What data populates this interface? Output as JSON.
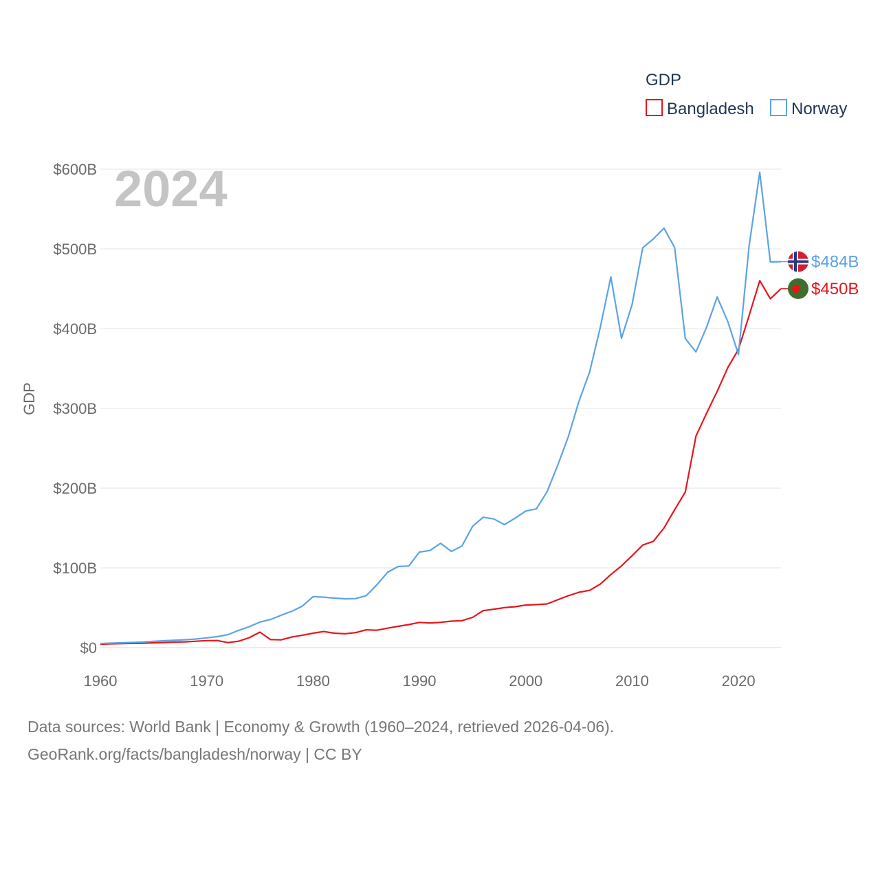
{
  "chart_data": {
    "type": "line",
    "title": "",
    "year_label": "2024",
    "xlabel": "",
    "ylabel": "GDP",
    "xlim": [
      1960,
      2024
    ],
    "ylim": [
      0,
      600
    ],
    "x_ticks": [
      1960,
      1970,
      1980,
      1990,
      2000,
      2010,
      2020
    ],
    "y_ticks": [
      0,
      100,
      200,
      300,
      400,
      500,
      600
    ],
    "y_tick_labels": [
      "$0",
      "$100B",
      "$200B",
      "$300B",
      "$400B",
      "$500B",
      "$600B"
    ],
    "grid": true,
    "legend": {
      "title": "GDP",
      "position": "top-right"
    },
    "x": [
      1960,
      1961,
      1962,
      1963,
      1964,
      1965,
      1966,
      1967,
      1968,
      1969,
      1970,
      1971,
      1972,
      1973,
      1974,
      1975,
      1976,
      1977,
      1978,
      1979,
      1980,
      1981,
      1982,
      1983,
      1984,
      1985,
      1986,
      1987,
      1988,
      1989,
      1990,
      1991,
      1992,
      1993,
      1994,
      1995,
      1996,
      1997,
      1998,
      1999,
      2000,
      2001,
      2002,
      2003,
      2004,
      2005,
      2006,
      2007,
      2008,
      2009,
      2010,
      2011,
      2012,
      2013,
      2014,
      2015,
      2016,
      2017,
      2018,
      2019,
      2020,
      2021,
      2022,
      2023,
      2024
    ],
    "series": [
      {
        "name": "Bangladesh",
        "color": "#e8141b",
        "end_label": "$450B",
        "flag_icon": "bangladesh-flag-icon",
        "values": [
          4.3,
          4.7,
          5.1,
          5.3,
          5.5,
          6,
          6.4,
          7,
          7.2,
          8,
          8.8,
          8.9,
          6.3,
          8,
          12.5,
          19.4,
          10.1,
          9.7,
          13.3,
          15.6,
          18.1,
          20.2,
          18.1,
          17.4,
          18.8,
          22.3,
          21.8,
          24.4,
          26.7,
          28.9,
          31.6,
          30.9,
          31.7,
          33.2,
          33.8,
          37.9,
          46.4,
          48.2,
          50.2,
          51.3,
          53.4,
          54,
          54.7,
          60,
          65.1,
          69.4,
          71.8,
          79.6,
          91.6,
          102.5,
          115.3,
          128.6,
          133.4,
          150,
          172.9,
          195.1,
          265.2,
          293.8,
          321.4,
          351.2,
          374,
          416.3,
          460.2,
          437.4,
          450.1
        ]
      },
      {
        "name": "Norway",
        "color": "#5aa4e6",
        "end_label": "$484B",
        "flag_icon": "norway-flag-icon",
        "values": [
          5.2,
          5.6,
          6,
          6.5,
          7,
          7.9,
          8.6,
          9.3,
          9.9,
          10.8,
          12.2,
          13.8,
          16.3,
          21.6,
          26.3,
          32,
          35.3,
          40.6,
          45.6,
          52.1,
          64,
          63.3,
          62.1,
          61.2,
          61.5,
          65.2,
          78.7,
          94.5,
          101.7,
          102.4,
          119.8,
          121.8,
          130.9,
          120.6,
          127.4,
          152.1,
          163.5,
          161.4,
          154.2,
          162.3,
          171.3,
          174,
          195.4,
          228.7,
          264.4,
          308.9,
          345.6,
          401,
          464.8,
          387.9,
          430.3,
          501.4,
          512.5,
          526,
          501.7,
          387.6,
          370.9,
          401.6,
          439.7,
          408.7,
          367.6,
          503.6,
          596,
          483.6,
          484
        ]
      }
    ]
  },
  "footer": {
    "line1": "Data sources: World Bank | Economy & Growth (1960–2024, retrieved 2026-04-06).",
    "line2": "GeoRank.org/facts/bangladesh/norway | CC BY"
  }
}
